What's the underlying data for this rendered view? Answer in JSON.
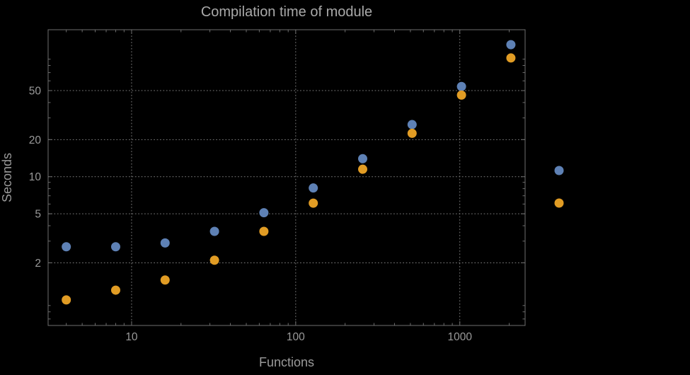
{
  "chart_data": {
    "type": "scatter",
    "title": "Compilation time of module",
    "xlabel": "Functions",
    "ylabel": "Seconds",
    "x_scale": "log",
    "y_scale": "log",
    "grid": true,
    "background": "#000000",
    "text_color": "#9a9a9a",
    "grid_color": "#7a7a7a",
    "frame_color": "#6e6e6e",
    "x_ticks": [
      10,
      100,
      1000
    ],
    "x_tick_labels": [
      "10",
      "100",
      "1000"
    ],
    "y_ticks": [
      2,
      5,
      10,
      20,
      50
    ],
    "y_tick_labels": [
      "2",
      "5",
      "10",
      "20",
      "50"
    ],
    "x_range": [
      3.1,
      2500
    ],
    "y_range": [
      0.62,
      156
    ],
    "x": [
      4,
      8,
      16,
      32,
      64,
      128,
      256,
      512,
      1024,
      2048
    ],
    "series": [
      {
        "name": "series-blue",
        "color": "#5e81b5",
        "values": [
          2.7,
          2.7,
          2.9,
          3.6,
          5.1,
          8.1,
          14,
          26.5,
          54,
          118
        ]
      },
      {
        "name": "series-orange",
        "color": "#e19c24",
        "values": [
          1.0,
          1.2,
          1.45,
          2.1,
          3.6,
          6.1,
          11.5,
          22.5,
          46,
          92
        ]
      }
    ],
    "legend": {
      "position": "right-of-plot",
      "entries": [
        {
          "label": "",
          "color": "#5e81b5"
        },
        {
          "label": "",
          "color": "#e19c24"
        }
      ]
    }
  }
}
